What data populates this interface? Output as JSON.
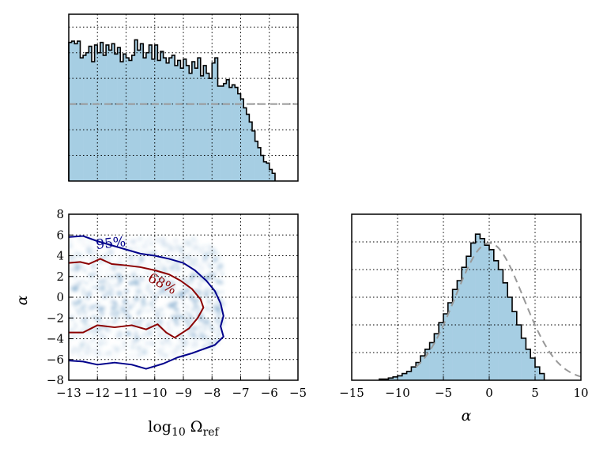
{
  "chart_data": [
    {
      "type": "histogram",
      "panel": "top-left",
      "x_range": [
        -13,
        -5
      ],
      "x_ticks": [
        -13,
        -12,
        -11,
        -10,
        -9,
        -8,
        -7,
        -6,
        -5
      ],
      "y_range": [
        0,
        1.3
      ],
      "bin_width": 0.1,
      "bin_start": -13,
      "values": [
        1.08,
        1.09,
        1.07,
        1.09,
        0.96,
        0.98,
        1.0,
        1.05,
        0.93,
        1.06,
        1.0,
        1.08,
        0.98,
        1.06,
        1.02,
        1.07,
        0.99,
        1.04,
        0.93,
        0.99,
        0.96,
        0.94,
        0.98,
        1.1,
        1.02,
        1.07,
        0.96,
        1.0,
        1.06,
        0.95,
        1.06,
        0.94,
        1.01,
        0.96,
        0.92,
        0.96,
        0.98,
        0.9,
        0.94,
        0.88,
        0.95,
        0.9,
        0.84,
        0.93,
        0.88,
        0.96,
        0.82,
        0.9,
        0.84,
        0.8,
        0.92,
        0.96,
        0.74,
        0.74,
        0.76,
        0.79,
        0.73,
        0.75,
        0.73,
        0.68,
        0.64,
        0.57,
        0.52,
        0.46,
        0.39,
        0.31,
        0.26,
        0.2,
        0.15,
        0.14,
        0.09,
        0.06
      ],
      "reference_line": {
        "y": 0.6,
        "style": "dashed",
        "color": "#999999"
      },
      "fill_color": "#a6cee3",
      "grid": true
    },
    {
      "type": "2d-density",
      "panel": "bottom-left",
      "xlabel": "log10 Ω_ref",
      "ylabel": "α",
      "x_range": [
        -13,
        -5
      ],
      "y_range": [
        -8,
        8
      ],
      "x_ticks": [
        -13,
        -12,
        -11,
        -10,
        -9,
        -8,
        -7,
        -6,
        -5
      ],
      "y_ticks": [
        -8,
        -6,
        -4,
        -2,
        0,
        2,
        4,
        6,
        8
      ],
      "contours": [
        {
          "label": "95%",
          "color": "#00008b",
          "path": [
            [
              -13,
              5.8
            ],
            [
              -12.5,
              5.9
            ],
            [
              -12,
              5.4
            ],
            [
              -11.5,
              5.0
            ],
            [
              -11,
              4.6
            ],
            [
              -10.5,
              4.2
            ],
            [
              -10,
              4.0
            ],
            [
              -9.5,
              3.7
            ],
            [
              -9,
              3.3
            ],
            [
              -8.6,
              2.6
            ],
            [
              -8.2,
              1.6
            ],
            [
              -7.9,
              0.6
            ],
            [
              -7.7,
              -0.6
            ],
            [
              -7.6,
              -1.8
            ],
            [
              -7.7,
              -2.8
            ],
            [
              -7.6,
              -3.8
            ],
            [
              -7.9,
              -4.6
            ],
            [
              -8.3,
              -5.0
            ],
            [
              -8.7,
              -5.4
            ],
            [
              -9.2,
              -5.8
            ],
            [
              -9.7,
              -6.4
            ],
            [
              -10.3,
              -6.9
            ],
            [
              -10.8,
              -6.5
            ],
            [
              -11.4,
              -6.3
            ],
            [
              -12,
              -6.5
            ],
            [
              -12.5,
              -6.2
            ],
            [
              -13,
              -6.1
            ]
          ]
        },
        {
          "label": "68%",
          "color": "#8b0000",
          "path": [
            [
              -13,
              3.3
            ],
            [
              -12.6,
              3.4
            ],
            [
              -12.3,
              3.2
            ],
            [
              -11.9,
              3.7
            ],
            [
              -11.5,
              3.2
            ],
            [
              -11.1,
              3.1
            ],
            [
              -10.5,
              2.9
            ],
            [
              -10,
              2.6
            ],
            [
              -9.5,
              2.2
            ],
            [
              -9.1,
              1.6
            ],
            [
              -8.7,
              0.8
            ],
            [
              -8.4,
              -0.2
            ],
            [
              -8.3,
              -1.0
            ],
            [
              -8.5,
              -2.0
            ],
            [
              -8.8,
              -3.0
            ],
            [
              -9.3,
              -3.9
            ],
            [
              -9.6,
              -3.4
            ],
            [
              -9.9,
              -2.6
            ],
            [
              -10.3,
              -3.1
            ],
            [
              -10.8,
              -2.7
            ],
            [
              -11.4,
              -2.9
            ],
            [
              -12,
              -2.7
            ],
            [
              -12.5,
              -3.4
            ],
            [
              -13,
              -3.4
            ]
          ]
        }
      ],
      "density_color": "#4682b4"
    },
    {
      "type": "histogram",
      "panel": "bottom-right",
      "xlabel": "α",
      "x_range": [
        -15,
        10
      ],
      "x_ticks": [
        -15,
        -10,
        -5,
        0,
        5,
        10
      ],
      "y_range": [
        0,
        0.15
      ],
      "bin_width": 0.5,
      "bin_start": -12,
      "values": [
        0.001,
        0.001,
        0.002,
        0.003,
        0.004,
        0.006,
        0.008,
        0.012,
        0.016,
        0.022,
        0.028,
        0.034,
        0.042,
        0.052,
        0.06,
        0.07,
        0.082,
        0.09,
        0.102,
        0.112,
        0.124,
        0.132,
        0.128,
        0.122,
        0.118,
        0.108,
        0.1,
        0.088,
        0.075,
        0.062,
        0.05,
        0.038,
        0.028,
        0.02,
        0.012,
        0.006
      ],
      "reference_curve": {
        "type": "gaussian",
        "mean": 0,
        "sigma": 3.7,
        "style": "dashed",
        "color": "#999999"
      },
      "fill_color": "#a6cee3",
      "grid": true
    }
  ]
}
